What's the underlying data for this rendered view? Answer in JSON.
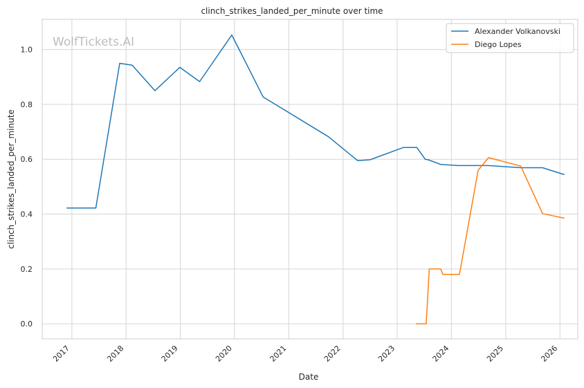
{
  "chart_data": {
    "type": "line",
    "title": "clinch_strikes_landed_per_minute over time",
    "xlabel": "Date",
    "ylabel": "clinch_strikes_landed_per_minute",
    "watermark": "WolfTickets.AI",
    "x_ticks": [
      "2017",
      "2018",
      "2019",
      "2020",
      "2021",
      "2022",
      "2023",
      "2024",
      "2025",
      "2026"
    ],
    "y_ticks": [
      "0.0",
      "0.2",
      "0.4",
      "0.6",
      "0.8",
      "1.0"
    ],
    "xlim": [
      "2016-06-15",
      "2026-05-01"
    ],
    "ylim": [
      -0.055,
      1.11
    ],
    "grid": true,
    "legend_position": "top-right",
    "series": [
      {
        "name": "Alexander Volkanovski",
        "color": "#1f77b4",
        "points": [
          [
            "2016-11-26",
            0.422
          ],
          [
            "2017-06-11",
            0.422
          ],
          [
            "2017-11-19",
            0.95
          ],
          [
            "2018-02-11",
            0.943
          ],
          [
            "2018-07-14",
            0.85
          ],
          [
            "2018-12-29",
            0.935
          ],
          [
            "2019-05-11",
            0.883
          ],
          [
            "2019-12-14",
            1.053
          ],
          [
            "2020-07-12",
            0.827
          ],
          [
            "2021-09-25",
            0.682
          ],
          [
            "2022-04-09",
            0.595
          ],
          [
            "2022-07-02",
            0.598
          ],
          [
            "2023-02-12",
            0.643
          ],
          [
            "2023-05-13",
            0.643
          ],
          [
            "2023-07-08",
            0.6
          ],
          [
            "2023-07-29",
            0.598
          ],
          [
            "2023-10-21",
            0.581
          ],
          [
            "2024-02-17",
            0.577
          ],
          [
            "2024-09-07",
            0.577
          ],
          [
            "2025-04-12",
            0.569
          ],
          [
            "2025-09-06",
            0.569
          ],
          [
            "2026-01-31",
            0.544
          ]
        ]
      },
      {
        "name": "Diego Lopes",
        "color": "#ff7f0e",
        "points": [
          [
            "2023-05-06",
            0.0
          ],
          [
            "2023-07-15",
            0.0
          ],
          [
            "2023-08-05",
            0.2
          ],
          [
            "2023-10-21",
            0.2
          ],
          [
            "2023-11-04",
            0.18
          ],
          [
            "2024-02-24",
            0.18
          ],
          [
            "2024-06-29",
            0.56
          ],
          [
            "2024-09-07",
            0.606
          ],
          [
            "2025-04-12",
            0.575
          ],
          [
            "2025-09-06",
            0.402
          ],
          [
            "2026-01-31",
            0.385
          ]
        ]
      }
    ]
  }
}
